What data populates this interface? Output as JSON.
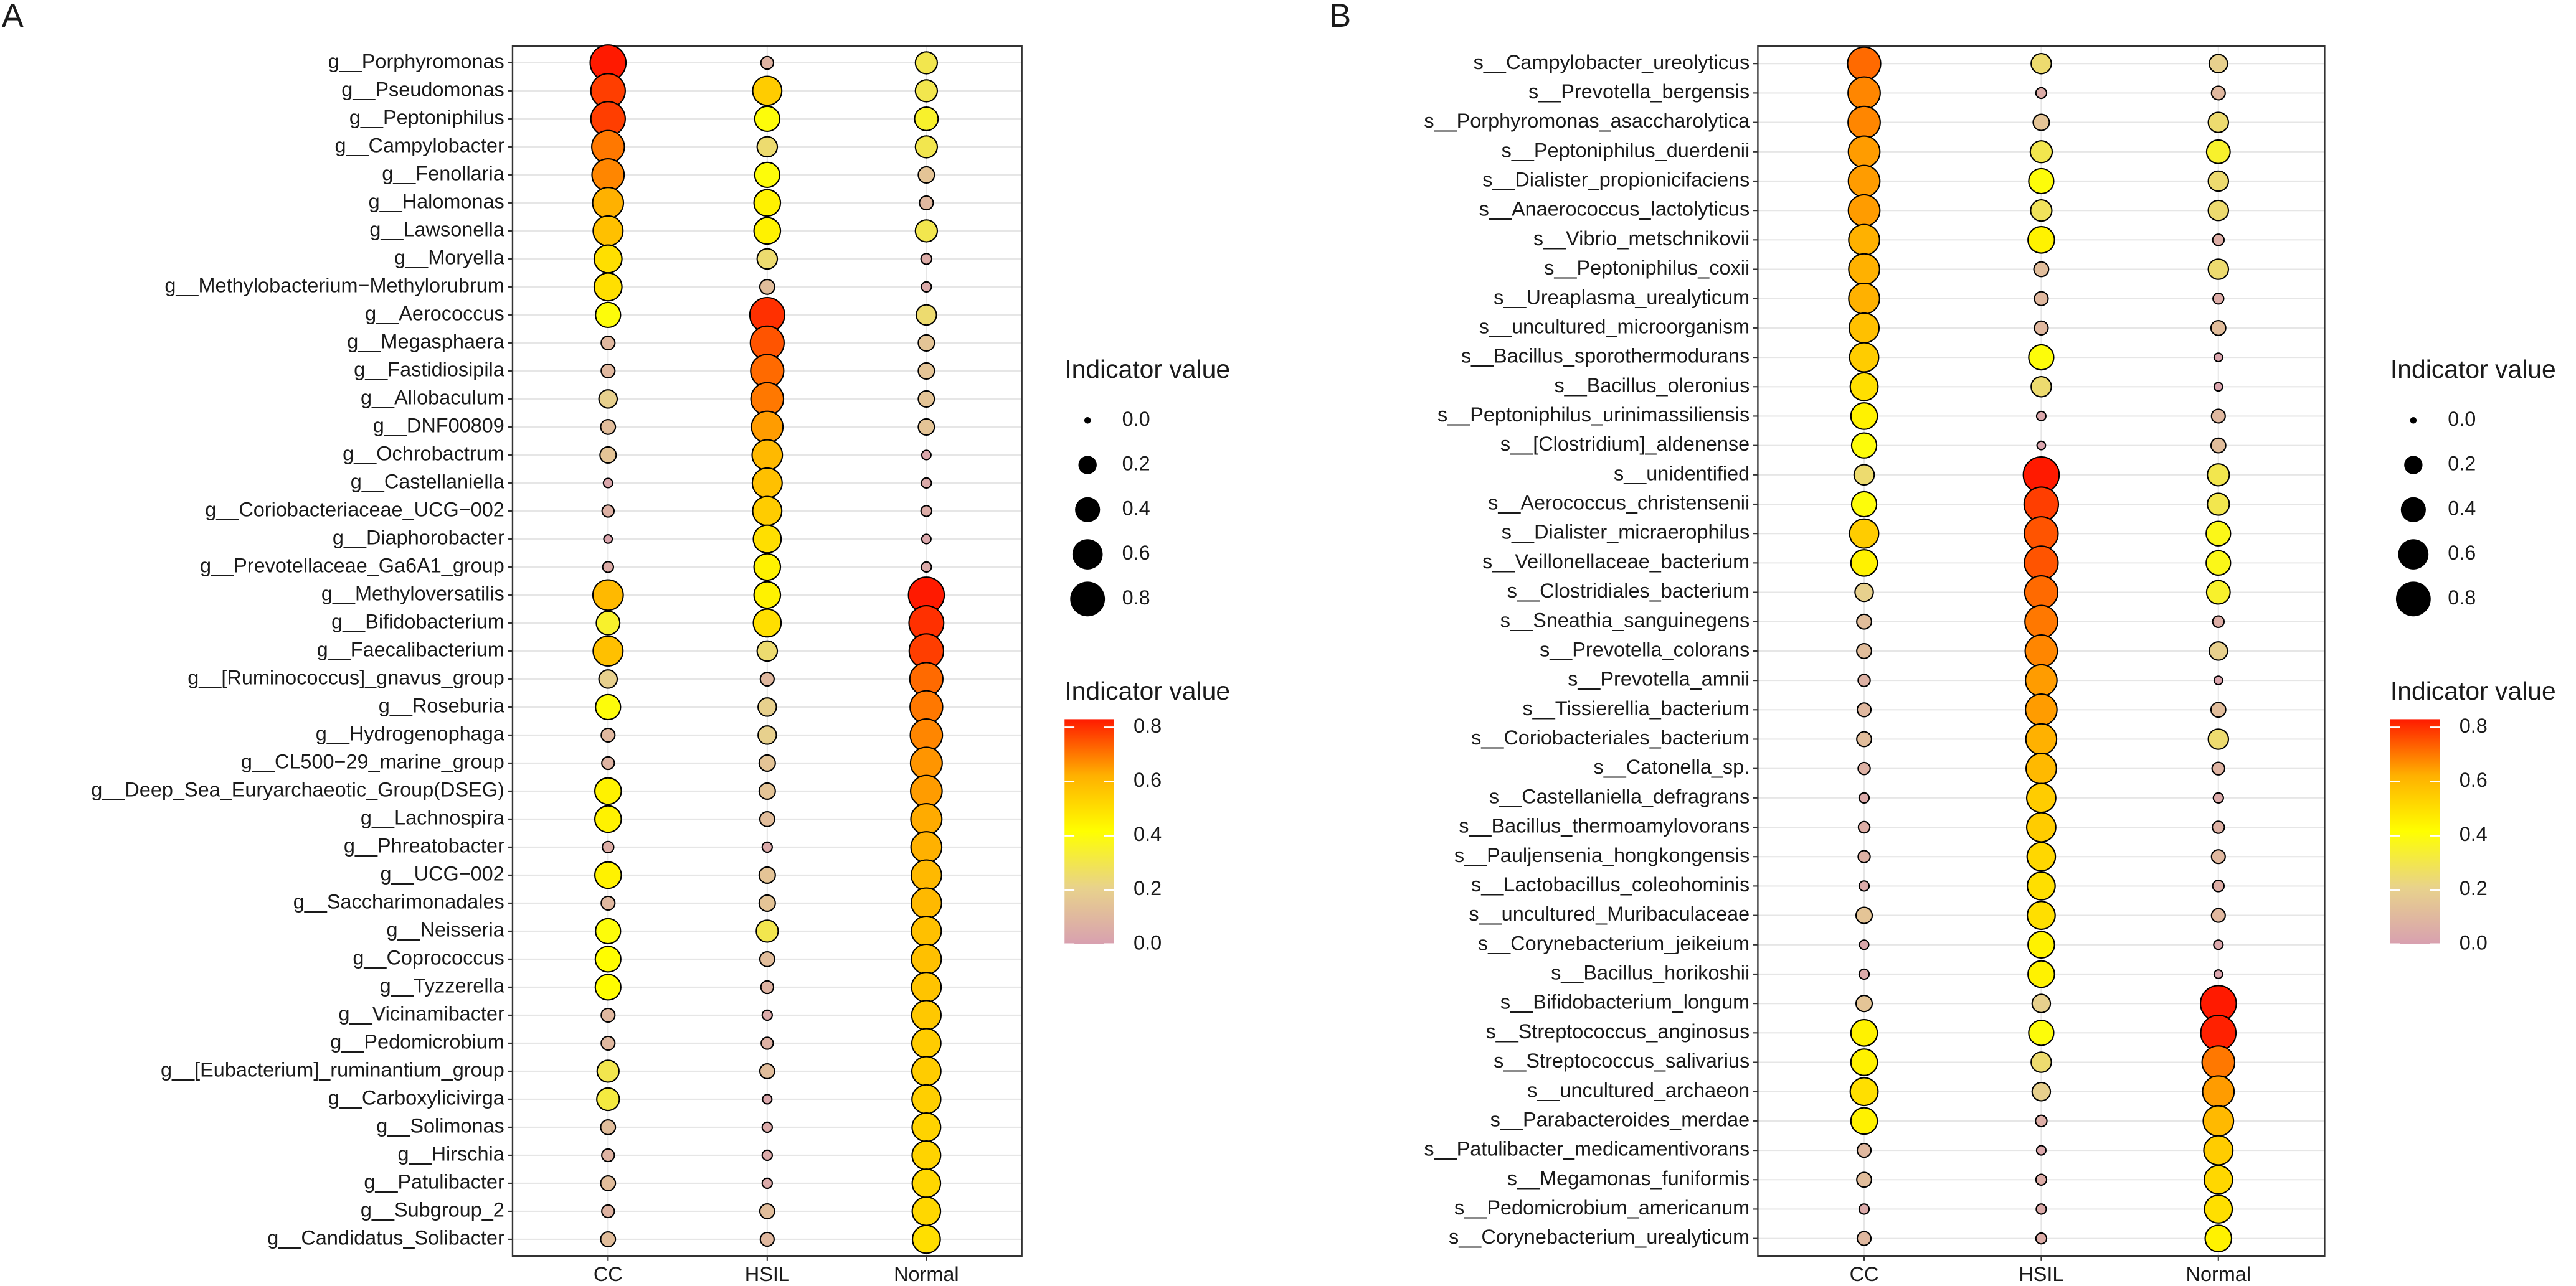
{
  "chart_data": [
    {
      "type": "dot",
      "panel_label": "A",
      "categories": [
        "g__Porphyromonas",
        "g__Pseudomonas",
        "g__Peptoniphilus",
        "g__Campylobacter",
        "g__Fenollaria",
        "g__Halomonas",
        "g__Lawsonella",
        "g__Moryella",
        "g__Methylobacterium−Methylorubrum",
        "g__Aerococcus",
        "g__Megasphaera",
        "g__Fastidiosipila",
        "g__Allobaculum",
        "g__DNF00809",
        "g__Ochrobactrum",
        "g__Castellaniella",
        "g__Coriobacteriaceae_UCG−002",
        "g__Diaphorobacter",
        "g__Prevotellaceae_Ga6A1_group",
        "g__Methyloversatilis",
        "g__Bifidobacterium",
        "g__Faecalibacterium",
        "g__[Ruminococcus]_gnavus_group",
        "g__Roseburia",
        "g__Hydrogenophaga",
        "g__CL500−29_marine_group",
        "g__Deep_Sea_Euryarchaeotic_Group(DSEG)",
        "g__Lachnospira",
        "g__Phreatobacter",
        "g__UCG−002",
        "g__Saccharimonadales",
        "g__Neisseria",
        "g__Coprococcus",
        "g__Tyzzerella",
        "g__Vicinamibacter",
        "g__Pedomicrobium",
        "g__[Eubacterium]_ruminantium_group",
        "g__Carboxylicivirga",
        "g__Solimonas",
        "g__Hirschia",
        "g__Patulibacter",
        "g__Subgroup_2",
        "g__Candidatus_Solibacter"
      ],
      "series": [
        {
          "name": "CC",
          "values": [
            0.85,
            0.78,
            0.78,
            0.7,
            0.68,
            0.62,
            0.58,
            0.5,
            0.5,
            0.4,
            0.1,
            0.1,
            0.2,
            0.12,
            0.15,
            0.03,
            0.07,
            0.02,
            0.05,
            0.6,
            0.35,
            0.58,
            0.2,
            0.4,
            0.1,
            0.08,
            0.45,
            0.45,
            0.06,
            0.45,
            0.1,
            0.4,
            0.42,
            0.42,
            0.1,
            0.1,
            0.3,
            0.32,
            0.12,
            0.08,
            0.12,
            0.08,
            0.12
          ]
        },
        {
          "name": "HSIL",
          "values": [
            0.08,
            0.55,
            0.4,
            0.25,
            0.4,
            0.45,
            0.45,
            0.25,
            0.12,
            0.8,
            0.75,
            0.72,
            0.7,
            0.65,
            0.6,
            0.58,
            0.55,
            0.5,
            0.45,
            0.45,
            0.5,
            0.25,
            0.1,
            0.2,
            0.2,
            0.15,
            0.15,
            0.12,
            0.04,
            0.15,
            0.15,
            0.3,
            0.12,
            0.08,
            0.04,
            0.07,
            0.12,
            0.03,
            0.04,
            0.04,
            0.04,
            0.12,
            0.1
          ]
        },
        {
          "name": "Normal",
          "values": [
            0.3,
            0.3,
            0.35,
            0.3,
            0.15,
            0.1,
            0.3,
            0.05,
            0.04,
            0.25,
            0.15,
            0.15,
            0.15,
            0.15,
            0.03,
            0.04,
            0.05,
            0.03,
            0.04,
            0.85,
            0.8,
            0.78,
            0.72,
            0.7,
            0.68,
            0.66,
            0.65,
            0.63,
            0.62,
            0.6,
            0.6,
            0.58,
            0.58,
            0.57,
            0.56,
            0.55,
            0.55,
            0.54,
            0.53,
            0.53,
            0.52,
            0.52,
            0.5
          ]
        }
      ],
      "grid": true,
      "size_legend": {
        "title": "Indicator value",
        "ticks": [
          {
            "value": 0,
            "label": "0.0"
          },
          0.2,
          0.4,
          0.6,
          0.8
        ]
      },
      "color_legend": {
        "title": "Indicator value",
        "clim": [
          0,
          0.83
        ],
        "colors": [
          "#d8a0b0",
          "#e8d28c",
          "#ffff00",
          "#ffb000",
          "#ff1a00"
        ],
        "ticks": [
          {
            "value": 0,
            "label": "0.0"
          },
          0.2,
          0.4,
          0.6,
          0.8
        ]
      }
    },
    {
      "type": "dot",
      "panel_label": "B",
      "categories": [
        "s__Campylobacter_ureolyticus",
        "s__Prevotella_bergensis",
        "s__Porphyromonas_asaccharolytica",
        "s__Peptoniphilus_duerdenii",
        "s__Dialister_propionicifaciens",
        "s__Anaerococcus_lactolyticus",
        "s__Vibrio_metschnikovii",
        "s__Peptoniphilus_coxii",
        "s__Ureaplasma_urealyticum",
        "s__uncultured_microorganism",
        "s__Bacillus_sporothermodurans",
        "s__Bacillus_oleronius",
        "s__Peptoniphilus_urinimassiliensis",
        "s__[Clostridium]_aldenense",
        "s__unidentified",
        "s__Aerococcus_christensenii",
        "s__Dialister_micraerophilus",
        "s__Veillonellaceae_bacterium",
        "s__Clostridiales_bacterium",
        "s__Sneathia_sanguinegens",
        "s__Prevotella_colorans",
        "s__Prevotella_amnii",
        "s__Tissierellia_bacterium",
        "s__Coriobacteriales_bacterium",
        "s__Catonella_sp.",
        "s__Castellaniella_defragrans",
        "s__Bacillus_thermoamylovorans",
        "s__Pauljensenia_hongkongensis",
        "s__Lactobacillus_coleohominis",
        "s__uncultured_Muribaculaceae",
        "s__Corynebacterium_jeikeium",
        "s__Bacillus_horikoshii",
        "s__Bifidobacterium_longum",
        "s__Streptococcus_anginosus",
        "s__Streptococcus_salivarius",
        "s__uncultured_archaeon",
        "s__Parabacteroides_merdae",
        "s__Patulibacter_medicamentivorans",
        "s__Megamonas_funiformis",
        "s__Pedomicrobium_americanum",
        "s__Corynebacterium_urealyticum"
      ],
      "series": [
        {
          "name": "CC",
          "values": [
            0.72,
            0.68,
            0.68,
            0.65,
            0.65,
            0.65,
            0.62,
            0.62,
            0.62,
            0.58,
            0.55,
            0.5,
            0.45,
            0.4,
            0.25,
            0.4,
            0.55,
            0.45,
            0.2,
            0.12,
            0.12,
            0.07,
            0.1,
            0.12,
            0.07,
            0.04,
            0.06,
            0.07,
            0.04,
            0.15,
            0.03,
            0.04,
            0.15,
            0.45,
            0.45,
            0.5,
            0.45,
            0.1,
            0.12,
            0.04,
            0.1
          ]
        },
        {
          "name": "HSIL",
          "values": [
            0.25,
            0.05,
            0.15,
            0.3,
            0.4,
            0.28,
            0.45,
            0.12,
            0.1,
            0.1,
            0.4,
            0.25,
            0.03,
            0.02,
            0.85,
            0.78,
            0.75,
            0.75,
            0.72,
            0.7,
            0.68,
            0.65,
            0.65,
            0.62,
            0.6,
            0.55,
            0.55,
            0.52,
            0.5,
            0.5,
            0.45,
            0.45,
            0.2,
            0.4,
            0.25,
            0.2,
            0.06,
            0.03,
            0.05,
            0.04,
            0.05
          ]
        },
        {
          "name": "Normal",
          "values": [
            0.2,
            0.1,
            0.25,
            0.35,
            0.25,
            0.25,
            0.06,
            0.25,
            0.05,
            0.12,
            0.02,
            0.02,
            0.1,
            0.12,
            0.3,
            0.3,
            0.38,
            0.38,
            0.35,
            0.06,
            0.2,
            0.02,
            0.12,
            0.25,
            0.08,
            0.04,
            0.07,
            0.1,
            0.06,
            0.1,
            0.03,
            0.02,
            0.85,
            0.82,
            0.7,
            0.65,
            0.6,
            0.55,
            0.52,
            0.5,
            0.45
          ]
        }
      ],
      "grid": true,
      "size_legend": {
        "title": "Indicator value",
        "ticks": [
          {
            "value": 0,
            "label": "0.0"
          },
          0.2,
          0.4,
          0.6,
          0.8
        ]
      },
      "color_legend": {
        "title": "Indicator value",
        "clim": [
          0,
          0.83
        ],
        "colors": [
          "#d8a0b0",
          "#e8d28c",
          "#ffff00",
          "#ffb000",
          "#ff1a00"
        ],
        "ticks": [
          {
            "value": 0,
            "label": "0.0"
          },
          0.2,
          0.4,
          0.6,
          0.8
        ]
      }
    }
  ]
}
